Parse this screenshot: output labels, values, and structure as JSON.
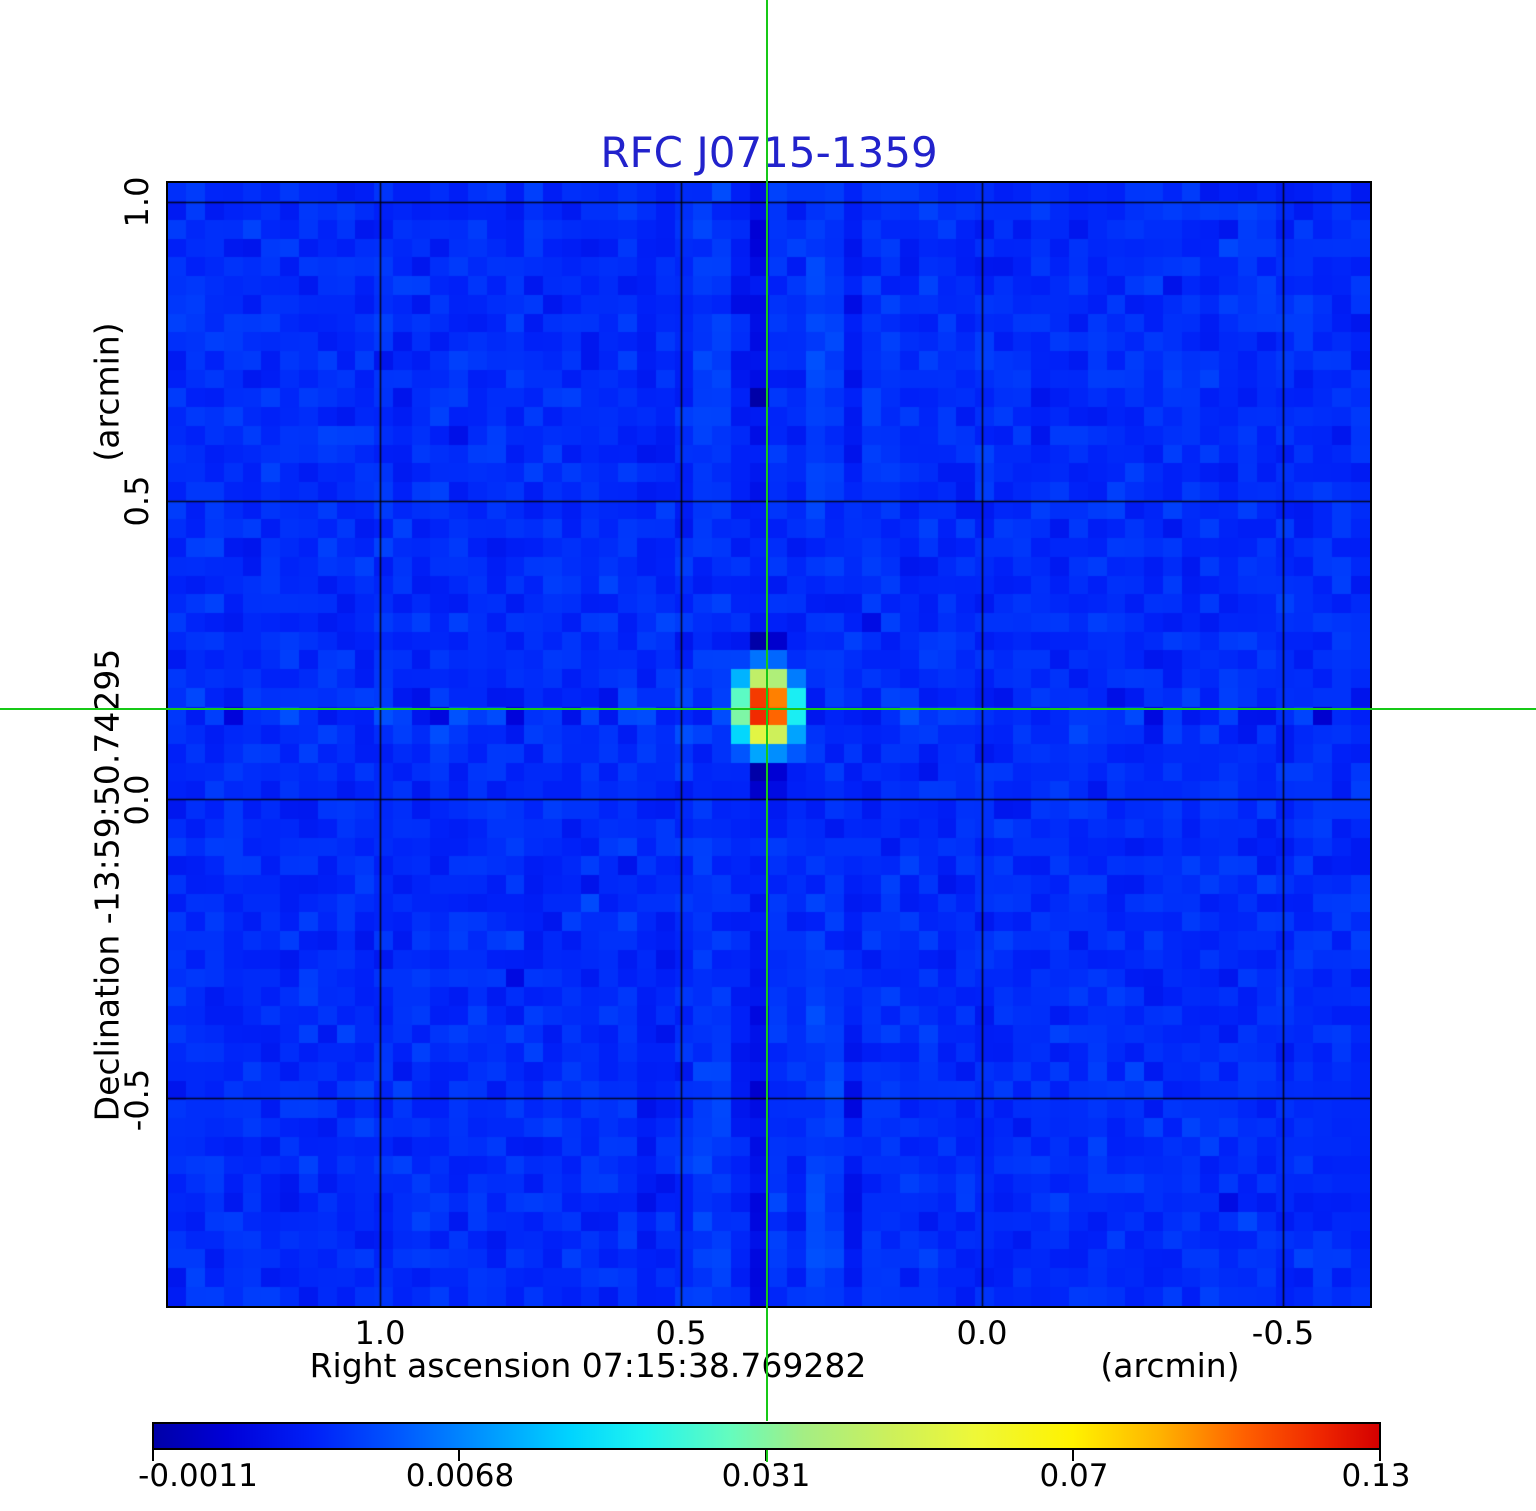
{
  "chart_data": {
    "type": "heatmap",
    "title": "RFC J0715-1359",
    "title_color": "#2222cc",
    "x_axis": {
      "title": "Right ascension  07:15:38.769282",
      "unit": "(arcmin)",
      "tick_labels": [
        "1.0",
        "0.5",
        "0.0",
        "-0.5"
      ],
      "tick_values": [
        1.0,
        0.5,
        0.0,
        -0.5
      ],
      "range": [
        1.352,
        -0.644
      ]
    },
    "y_axis": {
      "title": "Declination  -13:59:50.74295",
      "unit": "(arcmin)",
      "tick_labels": [
        "1.0",
        "0.5",
        "0.0",
        "-0.5"
      ],
      "tick_values": [
        1.0,
        0.5,
        0.0,
        -0.5
      ],
      "range": [
        1.032,
        -0.848
      ]
    },
    "grid": true,
    "grid_color": "rgba(0,0,0,0.85)",
    "crosshair": {
      "x_arcmin": 0.357,
      "y_arcmin": 0.152,
      "color": "#17c917"
    },
    "source": {
      "x_arcmin": 0.357,
      "y_arcmin": 0.152,
      "peak": 0.13,
      "shape": "compact, slightly elongated north-south, negative sidelobes above and below"
    },
    "background_level": 0.0016,
    "colorbar": {
      "tick_labels": [
        "-0.0011",
        "0.0068",
        "0.031",
        "0.07",
        "0.13"
      ],
      "tick_values": [
        -0.0011,
        0.0068,
        0.031,
        0.07,
        0.13
      ],
      "vmin": -0.0011,
      "vmax": 0.131,
      "scale": "sqrt",
      "colormap_stops": [
        [
          0.0,
          "#0000a8"
        ],
        [
          0.06,
          "#0000d8"
        ],
        [
          0.13,
          "#0020f8"
        ],
        [
          0.2,
          "#0058ff"
        ],
        [
          0.27,
          "#0096ff"
        ],
        [
          0.34,
          "#00d4ff"
        ],
        [
          0.4,
          "#20f4f0"
        ],
        [
          0.47,
          "#64fcbe"
        ],
        [
          0.53,
          "#a4ee84"
        ],
        [
          0.6,
          "#ccf05c"
        ],
        [
          0.67,
          "#eef838"
        ],
        [
          0.75,
          "#fff200"
        ],
        [
          0.82,
          "#ffb400"
        ],
        [
          0.89,
          "#ff6000"
        ],
        [
          0.95,
          "#f02800"
        ],
        [
          1.0,
          "#d40000"
        ]
      ]
    }
  }
}
